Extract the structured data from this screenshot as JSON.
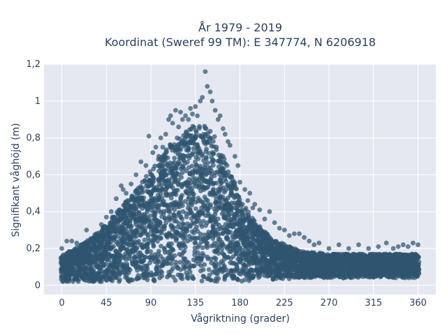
{
  "chart_data": {
    "type": "scatter",
    "title": "År 1979 - 2019",
    "subtitle": "Koordinat (Sweref 99 TM): E 347774, N 6206918",
    "xlabel": "Vågriktning (grader)",
    "ylabel": "Signifikant våghöjd (m)",
    "xlim": [
      -18,
      378
    ],
    "ylim": [
      -0.05,
      1.2
    ],
    "xticks": [
      0,
      45,
      90,
      135,
      180,
      225,
      270,
      315,
      360
    ],
    "xtick_labels": [
      "0",
      "45",
      "90",
      "135",
      "180",
      "225",
      "270",
      "315",
      "360"
    ],
    "yticks": [
      0,
      0.2,
      0.4,
      0.6,
      0.8,
      1,
      1.2
    ],
    "ytick_labels": [
      "0",
      "0,2",
      "0,4",
      "0,6",
      "0,8",
      "1",
      "1,2"
    ],
    "grid": true,
    "marker_color": "#2f5570",
    "plot_bg": "#e5e8f0",
    "envelope": {
      "x": [
        0,
        10,
        20,
        30,
        45,
        60,
        75,
        90,
        100,
        110,
        120,
        130,
        135,
        140,
        145,
        150,
        155,
        160,
        170,
        180,
        190,
        200,
        210,
        225,
        240,
        250,
        270,
        300,
        330,
        360
      ],
      "y_max": [
        0.16,
        0.19,
        0.22,
        0.26,
        0.33,
        0.43,
        0.52,
        0.62,
        0.7,
        0.78,
        0.82,
        0.86,
        0.87,
        0.88,
        0.86,
        0.84,
        0.8,
        0.74,
        0.62,
        0.48,
        0.38,
        0.32,
        0.27,
        0.22,
        0.19,
        0.18,
        0.17,
        0.17,
        0.17,
        0.17
      ],
      "y_min": [
        0.02,
        0.02,
        0.02,
        0.02,
        0.02,
        0.02,
        0.02,
        0.02,
        0.02,
        0.02,
        0.02,
        0.02,
        0.02,
        0.02,
        0.02,
        0.02,
        0.02,
        0.02,
        0.02,
        0.02,
        0.02,
        0.03,
        0.03,
        0.03,
        0.04,
        0.04,
        0.04,
        0.04,
        0.04,
        0.04
      ]
    },
    "outliers": {
      "x": [
        0,
        5,
        10,
        15,
        20,
        25,
        30,
        35,
        40,
        45,
        50,
        55,
        60,
        62,
        65,
        70,
        75,
        80,
        85,
        88,
        92,
        95,
        98,
        100,
        102,
        105,
        108,
        110,
        112,
        115,
        118,
        120,
        122,
        125,
        128,
        130,
        132,
        135,
        137,
        140,
        142,
        145,
        147,
        150,
        152,
        155,
        158,
        160,
        163,
        165,
        168,
        170,
        175,
        178,
        180,
        185,
        188,
        190,
        193,
        195,
        200,
        205,
        210,
        215,
        220,
        225,
        230,
        235,
        240,
        245,
        250,
        255,
        260,
        270,
        280,
        290,
        300,
        310,
        320,
        328,
        335,
        340,
        345,
        350,
        355,
        360
      ],
      "y": [
        0.2,
        0.24,
        0.24,
        0.23,
        0.22,
        0.3,
        0.25,
        0.28,
        0.33,
        0.37,
        0.4,
        0.47,
        0.54,
        0.52,
        0.5,
        0.55,
        0.6,
        0.67,
        0.65,
        0.81,
        0.72,
        0.75,
        0.7,
        0.8,
        0.75,
        0.82,
        0.9,
        0.92,
        0.88,
        0.95,
        0.86,
        0.94,
        0.9,
        0.92,
        0.9,
        0.96,
        0.93,
        0.97,
        0.92,
        1.0,
        1.02,
        1.16,
        1.08,
        1.05,
        1.0,
        0.95,
        0.9,
        0.92,
        0.85,
        0.82,
        0.78,
        0.76,
        0.7,
        0.65,
        0.56,
        0.52,
        0.46,
        0.5,
        0.42,
        0.44,
        0.41,
        0.36,
        0.4,
        0.34,
        0.31,
        0.3,
        0.27,
        0.28,
        0.28,
        0.26,
        0.24,
        0.22,
        0.23,
        0.2,
        0.22,
        0.2,
        0.22,
        0.2,
        0.21,
        0.23,
        0.2,
        0.21,
        0.22,
        0.21,
        0.23,
        0.22
      ]
    },
    "fill_points_per_column": 26,
    "random_seed": 7
  }
}
